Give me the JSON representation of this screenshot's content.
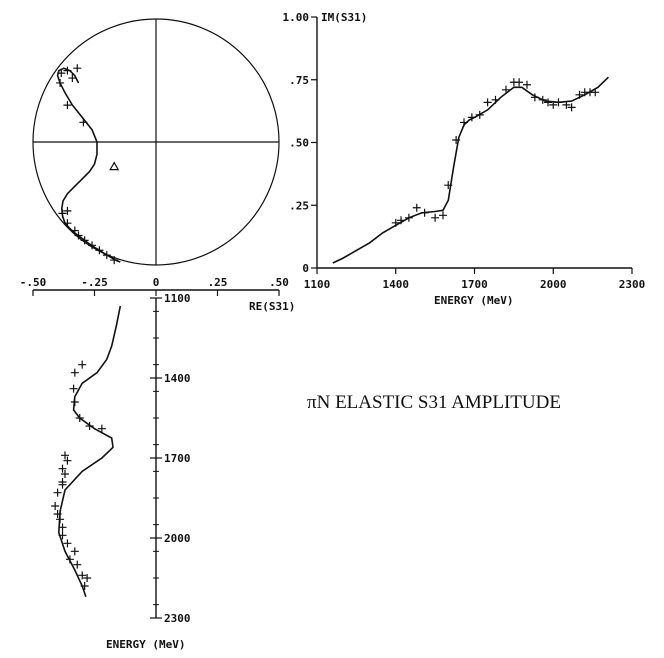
{
  "title": "πN ELASTIC S31 AMPLITUDE",
  "chart_data": [
    {
      "type": "scatter",
      "id": "argand",
      "xlabel": "RE(S31)",
      "ylabel": "",
      "xlim": [
        -0.5,
        0.5
      ],
      "ylim": [
        0,
        1
      ],
      "x_ticks": [
        "-.50",
        "-.25",
        "0",
        ".25",
        ".50"
      ],
      "unitarity_circle": {
        "center": [
          0,
          0.5
        ],
        "radius": 0.5
      },
      "curve": {
        "x": [
          -0.145,
          -0.16,
          -0.175,
          -0.19,
          -0.21,
          -0.23,
          -0.25,
          -0.27,
          -0.29,
          -0.31,
          -0.33,
          -0.35,
          -0.37,
          -0.38,
          -0.383,
          -0.378,
          -0.36,
          -0.33,
          -0.3,
          -0.27,
          -0.25,
          -0.24,
          -0.24,
          -0.26,
          -0.3,
          -0.34,
          -0.37,
          -0.39,
          -0.4,
          -0.395,
          -0.375,
          -0.35,
          -0.33,
          -0.32,
          -0.315
        ],
        "y": [
          0.012,
          0.018,
          0.026,
          0.035,
          0.047,
          0.06,
          0.072,
          0.085,
          0.1,
          0.115,
          0.13,
          0.148,
          0.17,
          0.2,
          0.23,
          0.26,
          0.29,
          0.32,
          0.35,
          0.38,
          0.41,
          0.45,
          0.5,
          0.55,
          0.6,
          0.65,
          0.7,
          0.74,
          0.77,
          0.79,
          0.8,
          0.79,
          0.77,
          0.75,
          0.74
        ]
      },
      "points": {
        "x": [
          -0.17,
          -0.2,
          -0.23,
          -0.26,
          -0.29,
          -0.315,
          -0.33,
          -0.36,
          -0.38,
          -0.36,
          -0.295,
          -0.36,
          -0.39,
          -0.385,
          -0.36,
          -0.34,
          -0.32
        ],
        "y": [
          0.02,
          0.04,
          0.06,
          0.08,
          0.1,
          0.12,
          0.14,
          0.17,
          0.21,
          0.22,
          0.58,
          0.65,
          0.74,
          0.78,
          0.79,
          0.76,
          0.8
        ]
      },
      "open_triangle": {
        "x": -0.17,
        "y": 0.4
      }
    },
    {
      "type": "scatter",
      "id": "imaginary",
      "ylabel": "IM(S31)",
      "xlabel": "ENERGY (MeV)",
      "xlim": [
        1100,
        2300
      ],
      "ylim": [
        0,
        1.0
      ],
      "x_ticks": [
        "1100",
        "1400",
        "1700",
        "2000",
        "2300"
      ],
      "y_ticks": [
        "0",
        ".25",
        ".50",
        ".75",
        "1.00"
      ],
      "curve": {
        "x": [
          1160,
          1200,
          1250,
          1300,
          1350,
          1400,
          1450,
          1500,
          1550,
          1580,
          1600,
          1620,
          1640,
          1660,
          1680,
          1700,
          1750,
          1800,
          1850,
          1880,
          1920,
          1970,
          2020,
          2070,
          2120,
          2170,
          2210
        ],
        "y": [
          0.02,
          0.04,
          0.07,
          0.1,
          0.14,
          0.17,
          0.2,
          0.22,
          0.225,
          0.23,
          0.27,
          0.4,
          0.52,
          0.57,
          0.59,
          0.6,
          0.63,
          0.68,
          0.72,
          0.72,
          0.69,
          0.665,
          0.66,
          0.665,
          0.69,
          0.72,
          0.76
        ]
      },
      "points": {
        "x": [
          1400,
          1420,
          1450,
          1480,
          1510,
          1550,
          1580,
          1600,
          1630,
          1660,
          1690,
          1720,
          1750,
          1780,
          1820,
          1850,
          1870,
          1900,
          1930,
          1960,
          1980,
          2000,
          2020,
          2050,
          2070,
          2100,
          2120,
          2140,
          2160
        ],
        "y": [
          0.18,
          0.19,
          0.2,
          0.24,
          0.22,
          0.2,
          0.21,
          0.33,
          0.51,
          0.58,
          0.6,
          0.61,
          0.66,
          0.67,
          0.71,
          0.74,
          0.74,
          0.73,
          0.68,
          0.67,
          0.66,
          0.65,
          0.66,
          0.65,
          0.64,
          0.69,
          0.7,
          0.7,
          0.7
        ]
      }
    },
    {
      "type": "scatter",
      "id": "real",
      "xlabel": "",
      "ylabel": "ENERGY (MeV)",
      "xlim": [
        -0.5,
        0.5
      ],
      "ylim": [
        1100,
        2300
      ],
      "y_ticks": [
        "1100",
        "1400",
        "1700",
        "2000",
        "2300"
      ],
      "curve": {
        "x": [
          -0.145,
          -0.16,
          -0.18,
          -0.2,
          -0.24,
          -0.3,
          -0.33,
          -0.335,
          -0.31,
          -0.25,
          -0.18,
          -0.175,
          -0.22,
          -0.3,
          -0.37,
          -0.39,
          -0.395,
          -0.37,
          -0.33,
          -0.3,
          -0.285
        ],
        "y": [
          1130,
          1200,
          1280,
          1330,
          1380,
          1420,
          1470,
          1520,
          1550,
          1590,
          1625,
          1660,
          1700,
          1750,
          1820,
          1900,
          1980,
          2050,
          2120,
          2180,
          2220
        ]
      },
      "points": {
        "x": [
          -0.3,
          -0.33,
          -0.335,
          -0.33,
          -0.31,
          -0.27,
          -0.22,
          -0.37,
          -0.36,
          -0.38,
          -0.37,
          -0.38,
          -0.38,
          -0.4,
          -0.41,
          -0.4,
          -0.39,
          -0.38,
          -0.38,
          -0.36,
          -0.33,
          -0.35,
          -0.32,
          -0.3,
          -0.28,
          -0.29
        ],
        "y": [
          1350,
          1380,
          1440,
          1490,
          1550,
          1580,
          1590,
          1690,
          1710,
          1740,
          1760,
          1790,
          1800,
          1830,
          1880,
          1910,
          1930,
          1960,
          1990,
          2020,
          2050,
          2080,
          2100,
          2140,
          2150,
          2180
        ]
      }
    }
  ]
}
